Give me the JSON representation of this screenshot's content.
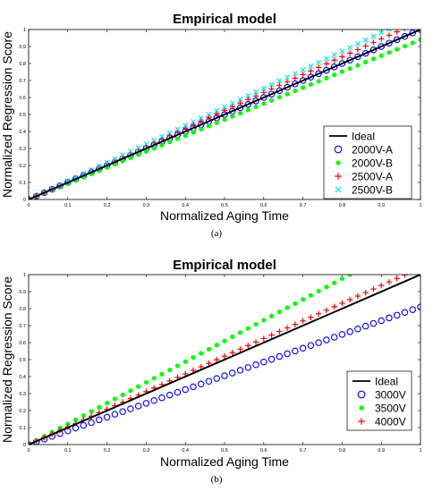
{
  "captions": [
    "(a)",
    "(b)"
  ],
  "chart_data": [
    {
      "type": "scatter",
      "title": "Empirical model",
      "xlabel": "Normalized Aging Time",
      "ylabel": "Normalized Regression Score",
      "xlim": [
        0,
        1
      ],
      "ylim": [
        0,
        1
      ],
      "xticks": [
        "0",
        "0.1",
        "0.2",
        "0.3",
        "0.4",
        "0.5",
        "0.6",
        "0.7",
        "0.8",
        "0.9",
        "1"
      ],
      "yticks": [
        "0",
        "0.1",
        "0.2",
        "0.3",
        "0.4",
        "0.5",
        "0.6",
        "0.7",
        "0.8",
        "0.9",
        "1"
      ],
      "legend_position": "bottom-right",
      "series": [
        {
          "name": "Ideal",
          "marker": "line",
          "color": "#000000",
          "x": [
            0,
            1
          ],
          "y": [
            0,
            1
          ]
        },
        {
          "name": "2000V-A",
          "marker": "circle",
          "color": "#0000ff",
          "x_start": 0,
          "x_end": 1,
          "n_points": 51,
          "y_start": 0,
          "y_end": 1.0
        },
        {
          "name": "2000V-B",
          "marker": "dot",
          "color": "#00ff00",
          "x_start": 0,
          "x_end": 1,
          "n_points": 51,
          "y_start": 0,
          "y_end": 0.94
        },
        {
          "name": "2500V-A",
          "marker": "plus",
          "color": "#ff0000",
          "x_start": 0,
          "x_end": 1,
          "n_points": 51,
          "y_start": 0,
          "y_end": 1.05
        },
        {
          "name": "2500V-B",
          "marker": "x",
          "color": "#00e5ff",
          "x_start": 0,
          "x_end": 1,
          "n_points": 51,
          "y_start": 0,
          "y_end": 1.09
        }
      ]
    },
    {
      "type": "scatter",
      "title": "Empirical model",
      "xlabel": "Normalized Aging Time",
      "ylabel": "Normalized Regression Score",
      "xlim": [
        0,
        1
      ],
      "ylim": [
        0,
        1
      ],
      "xticks": [
        "0",
        "0.1",
        "0.2",
        "0.3",
        "0.4",
        "0.5",
        "0.6",
        "0.7",
        "0.8",
        "0.9",
        "1"
      ],
      "yticks": [
        "0",
        "0.1",
        "0.2",
        "0.3",
        "0.4",
        "0.5",
        "0.6",
        "0.7",
        "0.8",
        "0.9",
        "1"
      ],
      "legend_position": "bottom-right",
      "series": [
        {
          "name": "Ideal",
          "marker": "line",
          "color": "#000000",
          "x": [
            0,
            1
          ],
          "y": [
            0,
            1
          ]
        },
        {
          "name": "3000V",
          "marker": "circle",
          "color": "#0000ff",
          "x_start": 0,
          "x_end": 1,
          "n_points": 51,
          "y_start": 0,
          "y_end": 0.81
        },
        {
          "name": "3500V",
          "marker": "dot",
          "color": "#00ff00",
          "x_start": 0,
          "x_end": 1,
          "n_points": 51,
          "y_start": 0,
          "y_end": 1.22
        },
        {
          "name": "4000V",
          "marker": "plus",
          "color": "#ff0000",
          "x_start": 0,
          "x_end": 1,
          "n_points": 51,
          "y_start": 0,
          "y_end": 1.04
        }
      ]
    }
  ]
}
